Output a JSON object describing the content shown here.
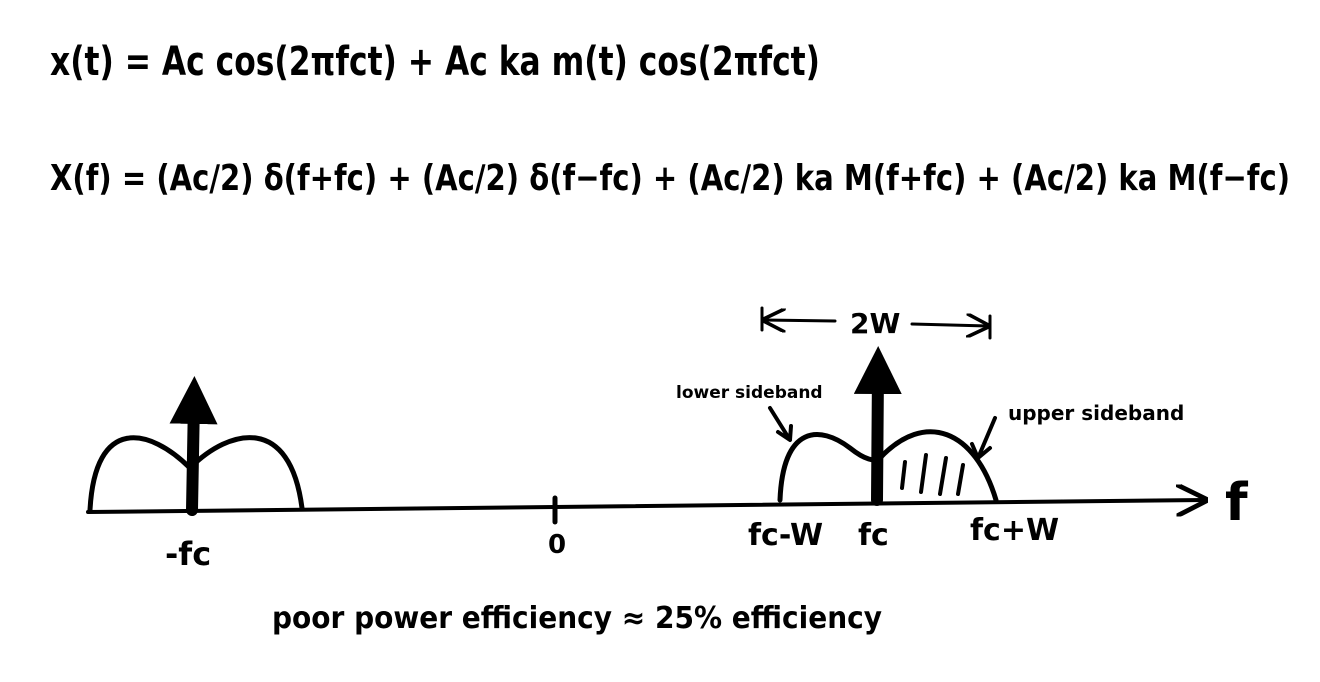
{
  "equations": {
    "time_domain": "x(t) = Ac cos(2πfct) + Ac ka m(t) cos(2πfct)",
    "frequency_domain": "X(f) = (Ac/2) δ(f+fc) + (Ac/2) δ(f−fc) + (Ac/2) ka M(f+fc) + (Ac/2) ka M(f−fc)"
  },
  "spectrum": {
    "axis_label": "f",
    "ticks": [
      "-fc",
      "0",
      "fc-W",
      "fc",
      "fc+W"
    ],
    "bandwidth_label": "2W",
    "annotations": [
      "lower sideband",
      "upper sideband"
    ]
  },
  "caption": "poor power efficiency ≈ 25% efficiency"
}
